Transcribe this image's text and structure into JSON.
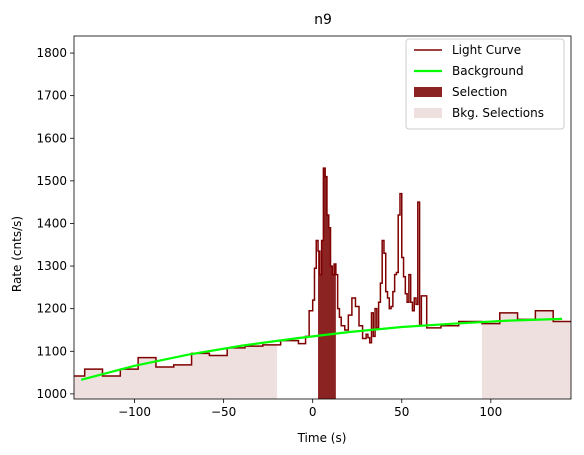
{
  "chart_data": {
    "type": "line",
    "title": "n9",
    "xlabel": "Time (s)",
    "ylabel": "Rate (cnts/s)",
    "xlim": [
      -134,
      145
    ],
    "ylim": [
      988,
      1840
    ],
    "xticks": [
      -100,
      -50,
      0,
      50,
      100
    ],
    "yticks": [
      1000,
      1100,
      1200,
      1300,
      1400,
      1500,
      1600,
      1700,
      1800
    ],
    "grid": false,
    "legend_position": "top-right",
    "legend": [
      {
        "key": "light_curve",
        "label": "Light Curve",
        "kind": "line",
        "color": "#7f0000"
      },
      {
        "key": "background",
        "label": "Background",
        "kind": "line",
        "color": "#00ff00"
      },
      {
        "key": "selection",
        "label": "Selection",
        "kind": "patch",
        "color": "#8b2323"
      },
      {
        "key": "bkg_selections",
        "label": "Bkg. Selections",
        "kind": "patch",
        "color": "#efe0e0"
      }
    ],
    "colors": {
      "light_curve": "#7f0000",
      "background": "#00ff00",
      "selection": "#8b2323",
      "bkg_selections": "#efe0e0"
    },
    "light_curve": {
      "x": [
        -134,
        -128,
        -118,
        -108,
        -98,
        -88,
        -78,
        -68,
        -58,
        -48,
        -38,
        -28,
        -18,
        -8,
        -4,
        -2,
        0,
        1,
        2,
        3,
        4,
        5,
        6,
        7,
        8,
        9,
        10,
        11,
        12,
        13,
        14,
        15,
        16,
        18,
        20,
        22,
        24,
        26,
        28,
        30,
        31,
        32,
        33,
        34,
        35,
        36,
        37,
        38,
        39,
        40,
        41,
        42,
        43,
        44,
        45,
        46,
        47,
        48,
        49,
        50,
        51,
        52,
        53,
        54,
        55,
        56,
        57,
        58,
        59,
        60,
        61,
        62,
        64,
        72,
        82,
        95,
        105,
        115,
        125,
        135,
        145
      ],
      "y": [
        1042,
        1058,
        1042,
        1058,
        1085,
        1063,
        1068,
        1095,
        1090,
        1108,
        1112,
        1115,
        1125,
        1118,
        1135,
        1195,
        1220,
        1295,
        1360,
        1335,
        1280,
        1360,
        1530,
        1510,
        1420,
        1390,
        1300,
        1280,
        1305,
        1280,
        1200,
        1180,
        1160,
        1150,
        1185,
        1225,
        1205,
        1160,
        1130,
        1140,
        1132,
        1120,
        1190,
        1135,
        1200,
        1155,
        1215,
        1260,
        1360,
        1330,
        1240,
        1225,
        1200,
        1205,
        1240,
        1280,
        1285,
        1420,
        1470,
        1320,
        1275,
        1235,
        1215,
        1280,
        1215,
        1195,
        1225,
        1210,
        1450,
        1160,
        1230,
        1230,
        1155,
        1160,
        1170,
        1165,
        1190,
        1175,
        1195,
        1170,
        1170
      ]
    },
    "background": {
      "x": [
        -130,
        -100,
        -70,
        -40,
        -10,
        20,
        50,
        80,
        110,
        140
      ],
      "y": [
        1033,
        1066,
        1092,
        1113,
        1130,
        1145,
        1157,
        1165,
        1172,
        1176
      ]
    },
    "selection": [
      3,
      13
    ],
    "bkg_selections": [
      [
        -134,
        -20
      ],
      [
        95,
        145
      ]
    ]
  }
}
